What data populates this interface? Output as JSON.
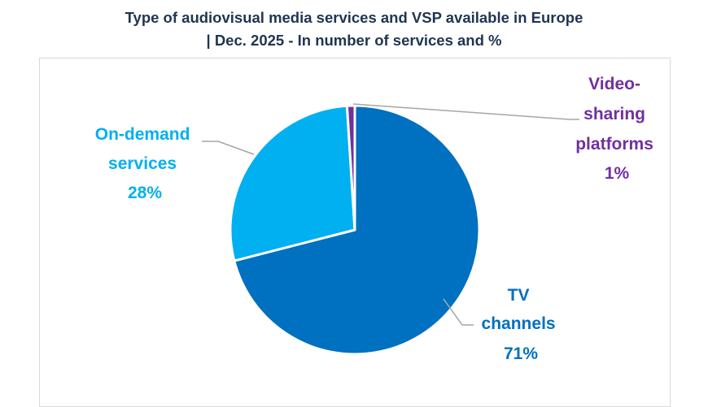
{
  "chart_data": {
    "type": "pie",
    "title_lines": [
      "Type of audiovisual media services and VSP available in Europe",
      "| Dec. 2025 - In number of services and %"
    ],
    "slices": [
      {
        "label_lines": [
          "TV",
          "channels"
        ],
        "percent_label": "71%",
        "value": 71,
        "color": "#0070c0"
      },
      {
        "label_lines": [
          "On-demand",
          "services"
        ],
        "percent_label": "28%",
        "value": 28,
        "color": "#00b0f0"
      },
      {
        "label_lines": [
          "Video-",
          "sharing",
          "platforms"
        ],
        "percent_label": "1%",
        "value": 1,
        "color": "#7030a0"
      }
    ],
    "legend": "none"
  }
}
